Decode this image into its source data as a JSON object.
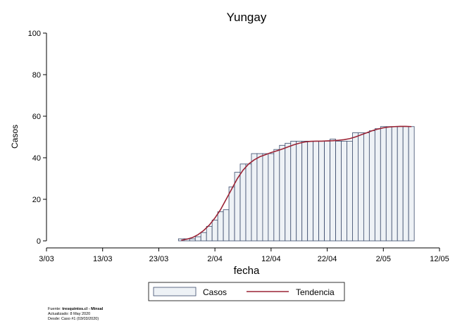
{
  "chart_data": {
    "type": "bar",
    "title": "Yungay",
    "xlabel": "fecha",
    "ylabel": "Casos",
    "ylim": [
      0,
      100
    ],
    "yticks": [
      0,
      20,
      40,
      60,
      80,
      100
    ],
    "xlim": [
      "2020-03-03",
      "2020-05-12"
    ],
    "xticks": [
      {
        "date": "2020-03-03",
        "label": "3/03"
      },
      {
        "date": "2020-03-13",
        "label": "13/03"
      },
      {
        "date": "2020-03-23",
        "label": "23/03"
      },
      {
        "date": "2020-04-02",
        "label": "2/04"
      },
      {
        "date": "2020-04-12",
        "label": "12/04"
      },
      {
        "date": "2020-04-22",
        "label": "22/04"
      },
      {
        "date": "2020-05-02",
        "label": "2/05"
      },
      {
        "date": "2020-05-12",
        "label": "12/05"
      }
    ],
    "grid": false,
    "legend_position": "bottom",
    "series": [
      {
        "name": "Casos",
        "type": "bar",
        "color": "#eef2f6",
        "edge_color": "#3a4a6b",
        "x": [
          "2020-03-27",
          "2020-03-28",
          "2020-03-29",
          "2020-03-30",
          "2020-03-31",
          "2020-04-01",
          "2020-04-02",
          "2020-04-03",
          "2020-04-04",
          "2020-04-05",
          "2020-04-06",
          "2020-04-07",
          "2020-04-08",
          "2020-04-09",
          "2020-04-10",
          "2020-04-11",
          "2020-04-12",
          "2020-04-13",
          "2020-04-14",
          "2020-04-15",
          "2020-04-16",
          "2020-04-17",
          "2020-04-18",
          "2020-04-19",
          "2020-04-20",
          "2020-04-21",
          "2020-04-22",
          "2020-04-23",
          "2020-04-24",
          "2020-04-25",
          "2020-04-26",
          "2020-04-27",
          "2020-04-28",
          "2020-04-29",
          "2020-04-30",
          "2020-05-01",
          "2020-05-02",
          "2020-05-03",
          "2020-05-04",
          "2020-05-05",
          "2020-05-06",
          "2020-05-07"
        ],
        "values": [
          1,
          1,
          1,
          2,
          4,
          7,
          10,
          14,
          15,
          26,
          33,
          37,
          37,
          42,
          42,
          42,
          42,
          44,
          46,
          47,
          48,
          48,
          48,
          48,
          48,
          48,
          48,
          49,
          48,
          48,
          48,
          52,
          52,
          52,
          53,
          54,
          55,
          55,
          55,
          55,
          55,
          55
        ]
      },
      {
        "name": "Tendencia",
        "type": "line",
        "color": "#9b2335",
        "x": [
          "2020-03-27",
          "2020-03-28",
          "2020-03-29",
          "2020-03-30",
          "2020-03-31",
          "2020-04-01",
          "2020-04-02",
          "2020-04-03",
          "2020-04-04",
          "2020-04-05",
          "2020-04-06",
          "2020-04-07",
          "2020-04-08",
          "2020-04-09",
          "2020-04-10",
          "2020-04-11",
          "2020-04-12",
          "2020-04-13",
          "2020-04-14",
          "2020-04-15",
          "2020-04-16",
          "2020-04-17",
          "2020-04-18",
          "2020-04-19",
          "2020-04-20",
          "2020-04-21",
          "2020-04-22",
          "2020-04-23",
          "2020-04-24",
          "2020-04-25",
          "2020-04-26",
          "2020-04-27",
          "2020-04-28",
          "2020-04-29",
          "2020-04-30",
          "2020-05-01",
          "2020-05-02",
          "2020-05-03",
          "2020-05-04",
          "2020-05-05",
          "2020-05-06",
          "2020-05-07"
        ],
        "values": [
          0.3,
          0.8,
          1.6,
          3.0,
          5.0,
          7.6,
          11,
          15,
          20,
          25,
          30,
          34,
          37,
          39,
          40.5,
          41.5,
          42.5,
          43.3,
          44.2,
          45.2,
          46.2,
          47.0,
          47.6,
          47.9,
          48.0,
          48.0,
          48.1,
          48.2,
          48.4,
          48.7,
          49.2,
          50.0,
          51.0,
          52.0,
          53.0,
          53.8,
          54.4,
          54.8,
          55.0,
          55.1,
          55.1,
          55.0
        ]
      }
    ]
  },
  "source_note": {
    "label": "Fuente:",
    "source": "tresquintos.cl - Minsal",
    "updated": "Actualizado: 8 May 2020",
    "since": "Desde: Caso #1  (03/03/2020)"
  }
}
